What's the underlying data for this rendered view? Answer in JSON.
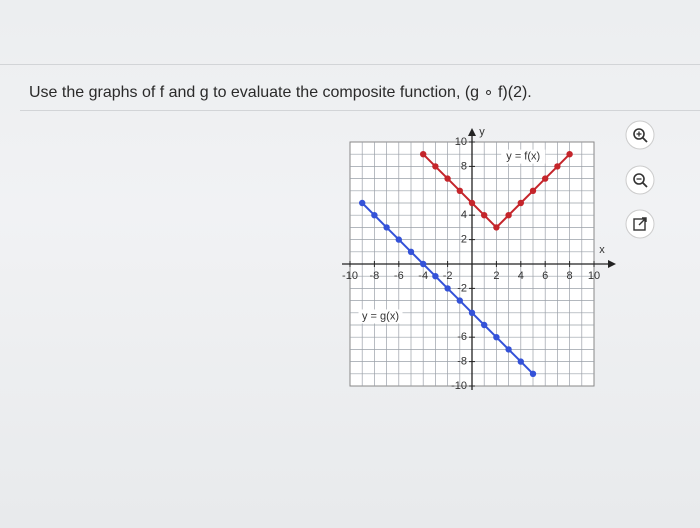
{
  "question": "Use the graphs of f and g to evaluate the composite function, (g ∘ f)(2).",
  "chart_data": {
    "type": "line",
    "x_label": "x",
    "y_label": "y",
    "annotations": [
      "y = f(x)",
      "y = g(x)"
    ],
    "x": [
      -9,
      -8,
      -7,
      -6,
      -5,
      -4,
      -3,
      -2,
      -1,
      0,
      1,
      2,
      3,
      4,
      5,
      6,
      7,
      8
    ],
    "series": [
      {
        "name": "f",
        "color": "#c4252b",
        "values": [
          null,
          null,
          null,
          null,
          null,
          9,
          8,
          7,
          6,
          5,
          4,
          3,
          4,
          5,
          6,
          7,
          8,
          9
        ]
      },
      {
        "name": "g",
        "color": "#3452d8",
        "values": [
          5,
          4,
          3,
          2,
          1,
          0,
          -1,
          -2,
          -3,
          -4,
          -5,
          -6,
          -7,
          -8,
          -9,
          null,
          null,
          null
        ]
      }
    ],
    "xlim": [
      -10,
      10
    ],
    "ylim": [
      -10,
      10
    ],
    "xticks": [
      -10,
      -8,
      -6,
      -4,
      -2,
      2,
      4,
      6,
      8,
      10
    ],
    "yticks": [
      10,
      8,
      4,
      2,
      -2,
      -6,
      -8,
      -10
    ],
    "grid": true
  }
}
